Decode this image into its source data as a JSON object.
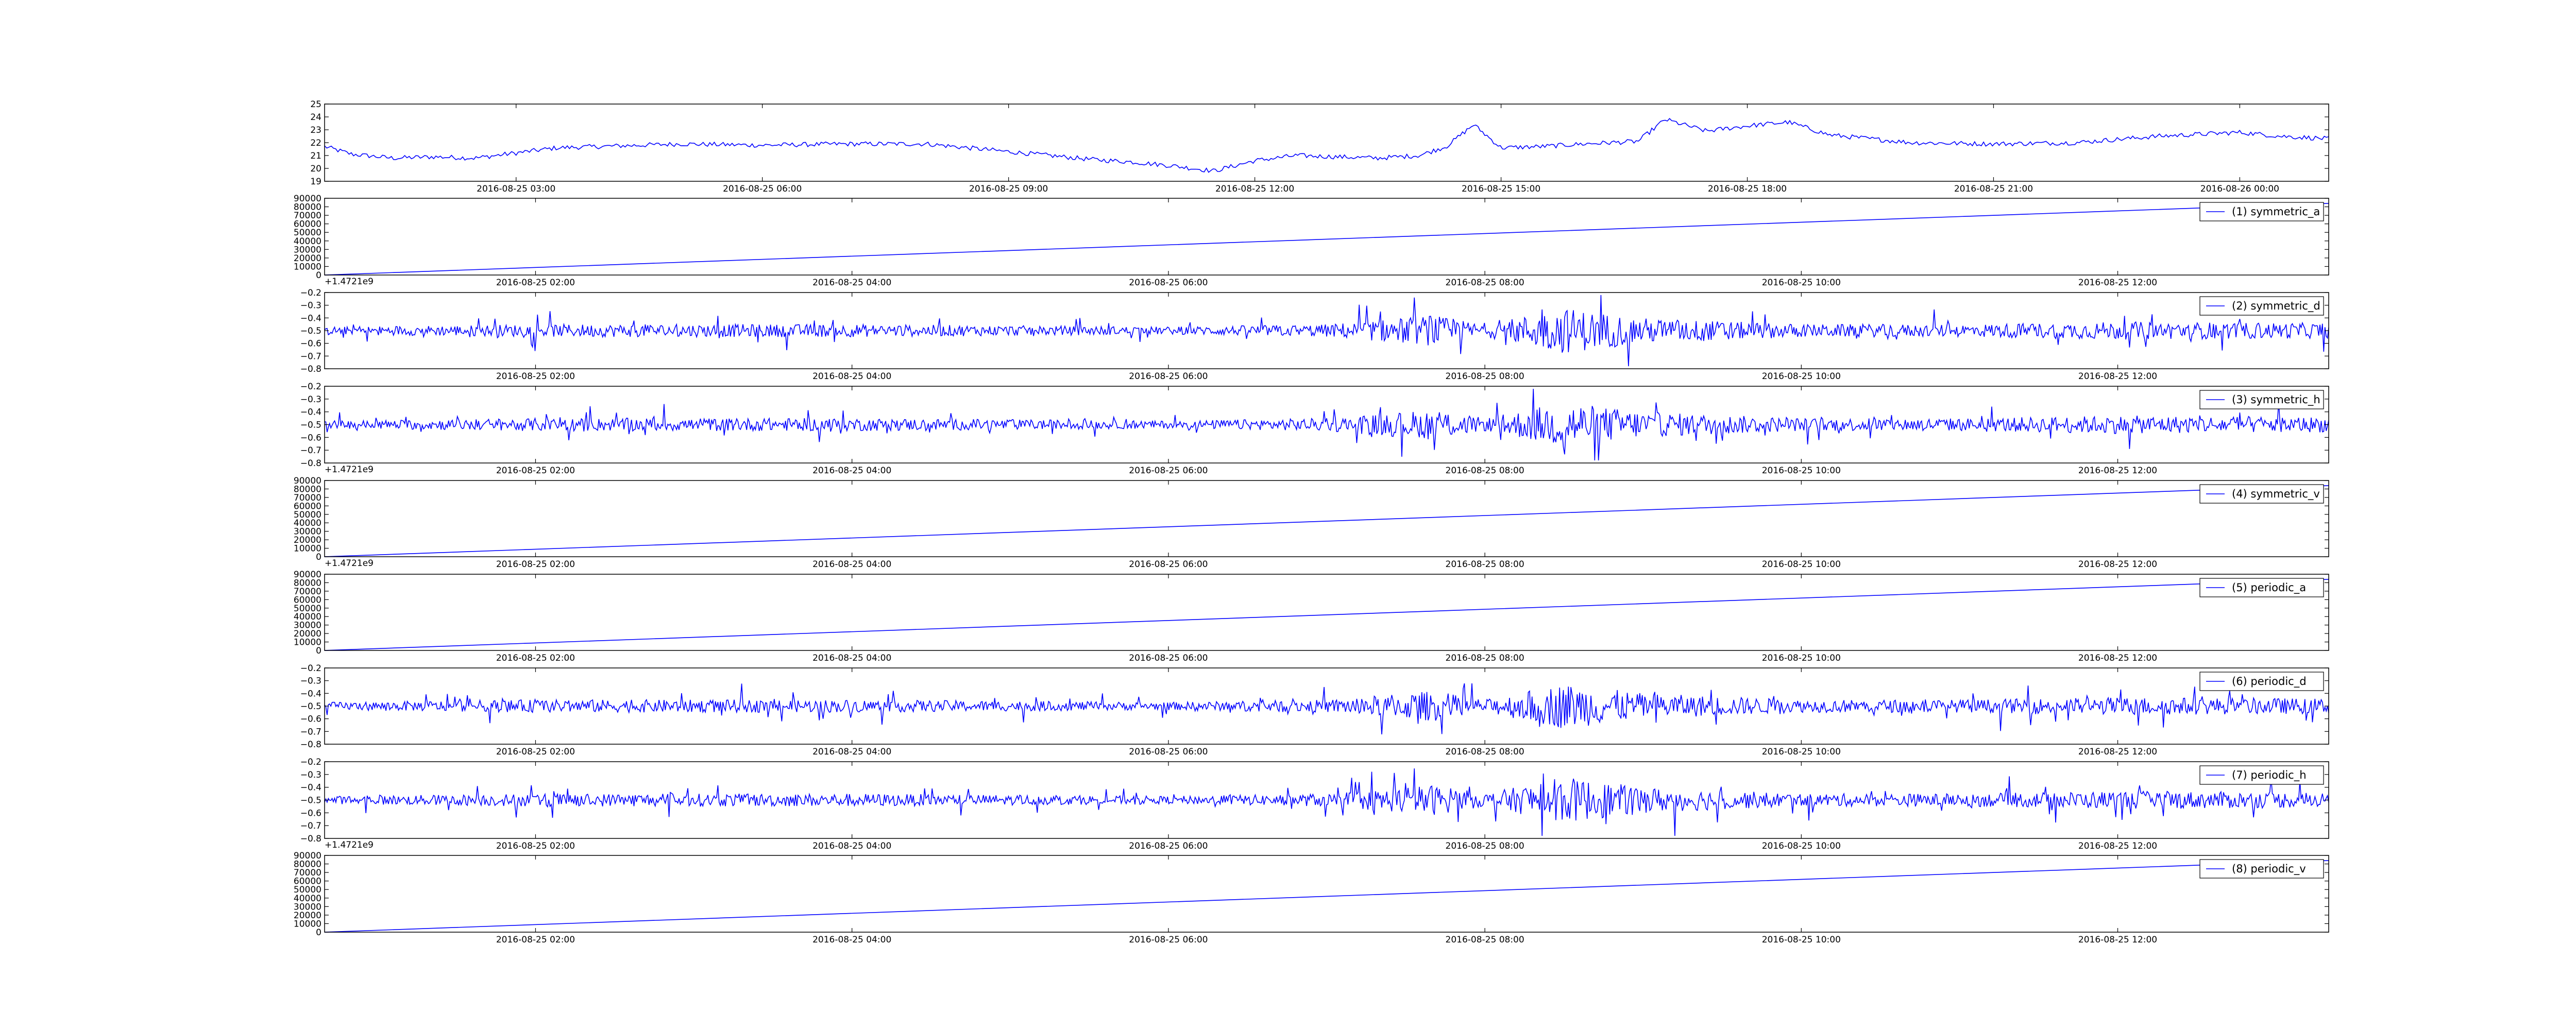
{
  "figure": {
    "background": "#ffffff",
    "line_color": "#0000ff"
  },
  "chart_data": [
    {
      "type": "line",
      "series": [
        {
          "name": "",
          "x": [
            "2016-08-25 00:40",
            "2016-08-25 01:00",
            "2016-08-25 01:30",
            "2016-08-25 02:00",
            "2016-08-25 02:30",
            "2016-08-25 03:00",
            "2016-08-25 03:30",
            "2016-08-25 04:00",
            "2016-08-25 05:00",
            "2016-08-25 06:00",
            "2016-08-25 07:00",
            "2016-08-25 08:00",
            "2016-08-25 09:00",
            "2016-08-25 10:00",
            "2016-08-25 10:30",
            "2016-08-25 11:00",
            "2016-08-25 11:30",
            "2016-08-25 12:00",
            "2016-08-25 12:30",
            "2016-08-25 13:00",
            "2016-08-25 13:30",
            "2016-08-25 14:00",
            "2016-08-25 14:20",
            "2016-08-25 14:40",
            "2016-08-25 15:00",
            "2016-08-25 15:30",
            "2016-08-25 16:00",
            "2016-08-25 16:40",
            "2016-08-25 17:00",
            "2016-08-25 17:30",
            "2016-08-25 18:00",
            "2016-08-25 18:30",
            "2016-08-25 19:00",
            "2016-08-25 20:00",
            "2016-08-25 21:00",
            "2016-08-25 22:00",
            "2016-08-25 23:00",
            "2016-08-26 00:00",
            "2016-08-26 00:30",
            "2016-08-26 01:05"
          ],
          "y": [
            21.7,
            21.1,
            20.8,
            20.9,
            20.8,
            21.2,
            21.6,
            21.7,
            21.9,
            21.8,
            21.9,
            21.9,
            21.3,
            20.7,
            20.5,
            20.2,
            19.8,
            20.6,
            21.0,
            20.9,
            20.8,
            21.0,
            21.7,
            23.4,
            21.6,
            21.7,
            21.9,
            22.1,
            23.8,
            22.9,
            23.3,
            23.6,
            22.6,
            22.0,
            21.9,
            22.0,
            22.5,
            22.8,
            22.5,
            22.3
          ]
        }
      ],
      "xlim": [
        "2016-08-25 00:40",
        "2016-08-26 01:05"
      ],
      "ylim": [
        19,
        25
      ],
      "yticks": [
        "19",
        "20",
        "21",
        "22",
        "23",
        "24",
        "25"
      ],
      "xticks": [
        "2016-08-25 03:00",
        "2016-08-25 06:00",
        "2016-08-25 09:00",
        "2016-08-25 12:00",
        "2016-08-25 15:00",
        "2016-08-25 18:00",
        "2016-08-25 21:00",
        "2016-08-26 00:00"
      ],
      "offset_label": "",
      "legend": null,
      "legend_location": "none",
      "grid": false
    },
    {
      "type": "line",
      "series": [
        {
          "name": "(1) symmetric_a",
          "x": [
            "2016-08-25 00:40",
            "2016-08-25 13:20"
          ],
          "y": [
            0,
            84000
          ]
        }
      ],
      "xlim": [
        "2016-08-25 00:40",
        "2016-08-25 13:20"
      ],
      "ylim": [
        0,
        90000
      ],
      "yticks": [
        "0",
        "10000",
        "20000",
        "30000",
        "40000",
        "50000",
        "60000",
        "70000",
        "80000",
        "90000"
      ],
      "xticks": [
        "2016-08-25 02:00",
        "2016-08-25 04:00",
        "2016-08-25 06:00",
        "2016-08-25 08:00",
        "2016-08-25 10:00",
        "2016-08-25 12:00"
      ],
      "offset_label": "+1.4721e9",
      "legend": "(1) symmetric_a",
      "legend_location": "upper right",
      "grid": false
    },
    {
      "type": "line",
      "series": [
        {
          "name": "(2) symmetric_d",
          "x": [
            "2016-08-25 00:40",
            "2016-08-25 02:00",
            "2016-08-25 04:00",
            "2016-08-25 06:00",
            "2016-08-25 07:00",
            "2016-08-25 07:40",
            "2016-08-25 08:00",
            "2016-08-25 08:30",
            "2016-08-25 09:00",
            "2016-08-25 10:00",
            "2016-08-25 11:00",
            "2016-08-25 12:00",
            "2016-08-25 13:20"
          ],
          "y": [
            -0.5,
            -0.5,
            -0.5,
            -0.5,
            -0.5,
            -0.5,
            -0.5,
            -0.5,
            -0.5,
            -0.5,
            -0.5,
            -0.5,
            -0.5
          ],
          "amplitude": [
            0.03,
            0.05,
            0.05,
            0.03,
            0.05,
            0.12,
            0.05,
            0.18,
            0.1,
            0.05,
            0.05,
            0.07,
            0.06
          ]
        }
      ],
      "xlim": [
        "2016-08-25 00:40",
        "2016-08-25 13:20"
      ],
      "ylim": [
        -0.8,
        -0.2
      ],
      "yticks": [
        "−0.8",
        "−0.7",
        "−0.6",
        "−0.5",
        "−0.4",
        "−0.3",
        "−0.2"
      ],
      "xticks": [
        "2016-08-25 02:00",
        "2016-08-25 04:00",
        "2016-08-25 06:00",
        "2016-08-25 08:00",
        "2016-08-25 10:00",
        "2016-08-25 12:00"
      ],
      "offset_label": "",
      "legend": "(2) symmetric_d",
      "legend_location": "upper right",
      "grid": false
    },
    {
      "type": "line",
      "series": [
        {
          "name": "(3) symmetric_h",
          "x": [
            "2016-08-25 00:40",
            "2016-08-25 02:00",
            "2016-08-25 04:00",
            "2016-08-25 06:00",
            "2016-08-25 07:00",
            "2016-08-25 07:40",
            "2016-08-25 08:00",
            "2016-08-25 08:30",
            "2016-08-25 09:00",
            "2016-08-25 10:00",
            "2016-08-25 11:00",
            "2016-08-25 12:00",
            "2016-08-25 13:20"
          ],
          "y": [
            -0.5,
            -0.5,
            -0.5,
            -0.5,
            -0.5,
            -0.5,
            -0.5,
            -0.5,
            -0.5,
            -0.5,
            -0.5,
            -0.5,
            -0.5
          ],
          "amplitude": [
            0.03,
            0.05,
            0.05,
            0.03,
            0.05,
            0.12,
            0.05,
            0.18,
            0.1,
            0.05,
            0.05,
            0.07,
            0.06
          ]
        }
      ],
      "xlim": [
        "2016-08-25 00:40",
        "2016-08-25 13:20"
      ],
      "ylim": [
        -0.8,
        -0.2
      ],
      "yticks": [
        "−0.8",
        "−0.7",
        "−0.6",
        "−0.5",
        "−0.4",
        "−0.3",
        "−0.2"
      ],
      "xticks": [
        "2016-08-25 02:00",
        "2016-08-25 04:00",
        "2016-08-25 06:00",
        "2016-08-25 08:00",
        "2016-08-25 10:00",
        "2016-08-25 12:00"
      ],
      "offset_label": "+1.4721e9",
      "legend": "(3) symmetric_h",
      "legend_location": "upper right",
      "grid": false
    },
    {
      "type": "line",
      "series": [
        {
          "name": "(4) symmetric_v",
          "x": [
            "2016-08-25 00:40",
            "2016-08-25 13:20"
          ],
          "y": [
            0,
            84000
          ]
        }
      ],
      "xlim": [
        "2016-08-25 00:40",
        "2016-08-25 13:20"
      ],
      "ylim": [
        0,
        90000
      ],
      "yticks": [
        "0",
        "10000",
        "20000",
        "30000",
        "40000",
        "50000",
        "60000",
        "70000",
        "80000",
        "90000"
      ],
      "xticks": [
        "2016-08-25 02:00",
        "2016-08-25 04:00",
        "2016-08-25 06:00",
        "2016-08-25 08:00",
        "2016-08-25 10:00",
        "2016-08-25 12:00"
      ],
      "offset_label": "+1.4721e9",
      "legend": "(4) symmetric_v",
      "legend_location": "upper right",
      "grid": false
    },
    {
      "type": "line",
      "series": [
        {
          "name": "(5) periodic_a",
          "x": [
            "2016-08-25 00:40",
            "2016-08-25 13:20"
          ],
          "y": [
            0,
            84000
          ]
        }
      ],
      "xlim": [
        "2016-08-25 00:40",
        "2016-08-25 13:20"
      ],
      "ylim": [
        0,
        90000
      ],
      "yticks": [
        "0",
        "10000",
        "20000",
        "30000",
        "40000",
        "50000",
        "60000",
        "70000",
        "80000",
        "90000"
      ],
      "xticks": [
        "2016-08-25 02:00",
        "2016-08-25 04:00",
        "2016-08-25 06:00",
        "2016-08-25 08:00",
        "2016-08-25 10:00",
        "2016-08-25 12:00"
      ],
      "offset_label": "",
      "legend": "(5) periodic_a",
      "legend_location": "upper right",
      "grid": false
    },
    {
      "type": "line",
      "series": [
        {
          "name": "(6) periodic_d",
          "x": [
            "2016-08-25 00:40",
            "2016-08-25 02:00",
            "2016-08-25 04:00",
            "2016-08-25 06:00",
            "2016-08-25 07:00",
            "2016-08-25 07:40",
            "2016-08-25 08:00",
            "2016-08-25 08:30",
            "2016-08-25 09:00",
            "2016-08-25 10:00",
            "2016-08-25 11:00",
            "2016-08-25 12:00",
            "2016-08-25 13:20"
          ],
          "y": [
            -0.5,
            -0.5,
            -0.5,
            -0.5,
            -0.5,
            -0.5,
            -0.5,
            -0.5,
            -0.5,
            -0.5,
            -0.5,
            -0.5,
            -0.5
          ],
          "amplitude": [
            0.03,
            0.05,
            0.05,
            0.03,
            0.05,
            0.12,
            0.05,
            0.18,
            0.1,
            0.05,
            0.05,
            0.07,
            0.06
          ]
        }
      ],
      "xlim": [
        "2016-08-25 00:40",
        "2016-08-25 13:20"
      ],
      "ylim": [
        -0.8,
        -0.2
      ],
      "yticks": [
        "−0.8",
        "−0.7",
        "−0.6",
        "−0.5",
        "−0.4",
        "−0.3",
        "−0.2"
      ],
      "xticks": [
        "2016-08-25 02:00",
        "2016-08-25 04:00",
        "2016-08-25 06:00",
        "2016-08-25 08:00",
        "2016-08-25 10:00",
        "2016-08-25 12:00"
      ],
      "offset_label": "",
      "legend": "(6) periodic_d",
      "legend_location": "upper right",
      "grid": false
    },
    {
      "type": "line",
      "series": [
        {
          "name": "(7) periodic_h",
          "x": [
            "2016-08-25 00:40",
            "2016-08-25 02:00",
            "2016-08-25 04:00",
            "2016-08-25 06:00",
            "2016-08-25 07:00",
            "2016-08-25 07:40",
            "2016-08-25 08:00",
            "2016-08-25 08:30",
            "2016-08-25 09:00",
            "2016-08-25 10:00",
            "2016-08-25 11:00",
            "2016-08-25 12:00",
            "2016-08-25 13:20"
          ],
          "y": [
            -0.5,
            -0.5,
            -0.5,
            -0.5,
            -0.5,
            -0.5,
            -0.5,
            -0.5,
            -0.5,
            -0.5,
            -0.5,
            -0.5,
            -0.5
          ],
          "amplitude": [
            0.03,
            0.05,
            0.05,
            0.03,
            0.05,
            0.12,
            0.05,
            0.18,
            0.1,
            0.05,
            0.05,
            0.07,
            0.06
          ]
        }
      ],
      "xlim": [
        "2016-08-25 00:40",
        "2016-08-25 13:20"
      ],
      "ylim": [
        -0.8,
        -0.2
      ],
      "yticks": [
        "−0.8",
        "−0.7",
        "−0.6",
        "−0.5",
        "−0.4",
        "−0.3",
        "−0.2"
      ],
      "xticks": [
        "2016-08-25 02:00",
        "2016-08-25 04:00",
        "2016-08-25 06:00",
        "2016-08-25 08:00",
        "2016-08-25 10:00",
        "2016-08-25 12:00"
      ],
      "offset_label": "+1.4721e9",
      "legend": "(7) periodic_h",
      "legend_location": "upper right",
      "grid": false
    },
    {
      "type": "line",
      "series": [
        {
          "name": "(8) periodic_v",
          "x": [
            "2016-08-25 00:40",
            "2016-08-25 13:20"
          ],
          "y": [
            0,
            84000
          ]
        }
      ],
      "xlim": [
        "2016-08-25 00:40",
        "2016-08-25 13:20"
      ],
      "ylim": [
        0,
        90000
      ],
      "yticks": [
        "0",
        "10000",
        "20000",
        "30000",
        "40000",
        "50000",
        "60000",
        "70000",
        "80000",
        "90000"
      ],
      "xticks": [
        "2016-08-25 02:00",
        "2016-08-25 04:00",
        "2016-08-25 06:00",
        "2016-08-25 08:00",
        "2016-08-25 10:00",
        "2016-08-25 12:00"
      ],
      "offset_label": "",
      "legend": "(8) periodic_v",
      "legend_location": "upper right",
      "grid": false
    }
  ]
}
